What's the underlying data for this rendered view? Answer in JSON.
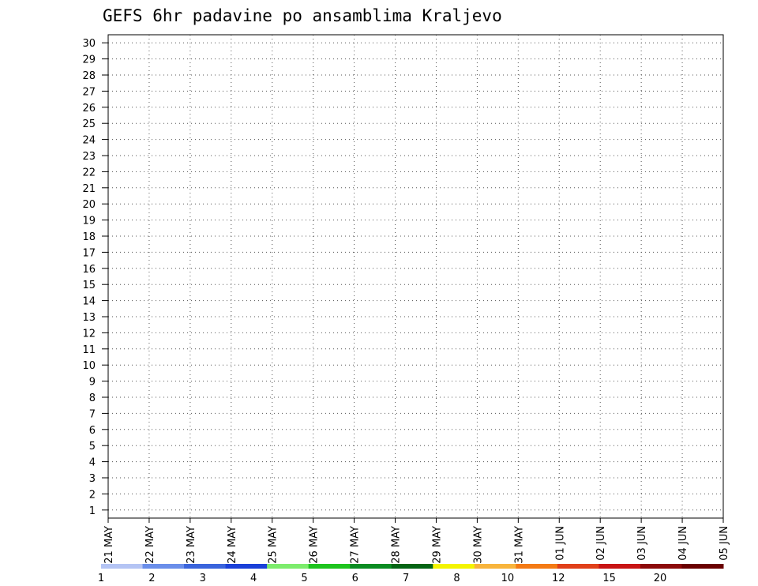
{
  "chart_data": {
    "type": "heatmap",
    "title": "GEFS 6hr padavine po ansamblima Kraljevo",
    "y_categories": [
      "1",
      "2",
      "3",
      "4",
      "5",
      "6",
      "7",
      "8",
      "9",
      "10",
      "11",
      "12",
      "13",
      "14",
      "15",
      "16",
      "17",
      "18",
      "19",
      "20",
      "21",
      "22",
      "23",
      "24",
      "25",
      "26",
      "27",
      "28",
      "29",
      "30"
    ],
    "x_tick_labels": [
      "21 MAY",
      "22 MAY",
      "23 MAY",
      "24 MAY",
      "25 MAY",
      "26 MAY",
      "27 MAY",
      "28 MAY",
      "29 MAY",
      "30 MAY",
      "31 MAY",
      "01 JUN",
      "02 JUN",
      "03 JUN",
      "04 JUN",
      "05 JUN"
    ],
    "time_steps_per_day": 4,
    "legend": {
      "labels": [
        "1",
        "2",
        "3",
        "4",
        "5",
        "6",
        "7",
        "8",
        "10",
        "12",
        "15",
        "20"
      ],
      "colors": [
        "#b4c4f4",
        "#6a8eea",
        "#3a64dc",
        "#1a40d8",
        "#7cec6c",
        "#1ec41e",
        "#0a8c22",
        "#046414",
        "#f4f400",
        "#f8b43c",
        "#f47a14",
        "#e0401a",
        "#c81414",
        "#8c0a0a",
        "#6a0000"
      ]
    },
    "ensemble_rows": [
      {
        "member": "30",
        "values": [
          0,
          0,
          0,
          0,
          0,
          0,
          0,
          0,
          0,
          0,
          0,
          0,
          0,
          0,
          0,
          0,
          0,
          0,
          0,
          0,
          0,
          0,
          0,
          0,
          0,
          0,
          0,
          0,
          0,
          0,
          0,
          0,
          0,
          0,
          0,
          0,
          0,
          0,
          0,
          0,
          0,
          0,
          0,
          0,
          0,
          0,
          0,
          0,
          0,
          0,
          0,
          0,
          0,
          0,
          0,
          0,
          0,
          0,
          0,
          0,
          0
        ]
      },
      {
        "member": "29",
        "values": [
          0,
          0,
          0,
          0,
          0,
          0,
          0,
          0,
          0,
          0,
          0,
          0,
          0,
          0,
          0,
          0,
          0,
          0,
          0,
          0,
          0,
          0,
          0,
          0,
          0,
          0,
          0,
          0,
          0,
          0,
          0,
          0,
          0,
          0,
          0,
          0,
          0,
          0,
          0,
          0,
          0,
          0,
          0,
          0,
          0,
          0,
          0,
          0,
          0,
          0,
          0,
          0,
          0,
          0,
          0,
          0,
          0,
          0,
          0,
          0,
          0
        ]
      }
    ]
  }
}
